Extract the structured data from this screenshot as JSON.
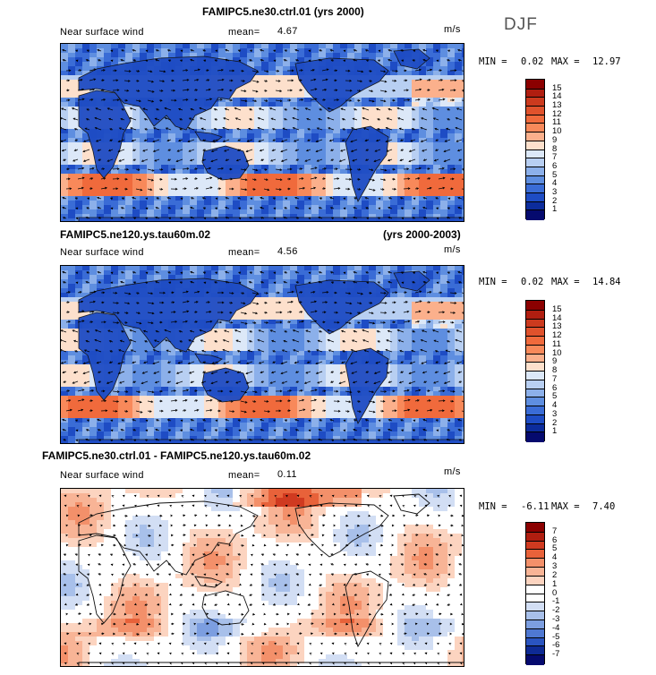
{
  "season": "DJF",
  "panels": [
    {
      "title": "FAMIPC5.ne30.ctrl.01 (yrs 2000)",
      "title_right": "",
      "variable": "Near surface wind",
      "mean_label": "mean=",
      "mean_value": "4.67",
      "units": "m/s",
      "min_label": "MIN =",
      "min_value": "0.02",
      "max_label": "MAX =",
      "max_value": "12.97",
      "colorbar_labels": [
        "15",
        "14",
        "13",
        "12",
        "11",
        "10",
        "9",
        "8",
        "7",
        "6",
        "5",
        "4",
        "3",
        "2",
        "1"
      ]
    },
    {
      "title": "FAMIPC5.ne120.ys.tau60m.02",
      "title_right": "(yrs 2000-2003)",
      "variable": "Near surface wind",
      "mean_label": "mean=",
      "mean_value": "4.56",
      "units": "m/s",
      "min_label": "MIN =",
      "min_value": "0.02",
      "max_label": "MAX =",
      "max_value": "14.84",
      "colorbar_labels": [
        "15",
        "14",
        "13",
        "12",
        "11",
        "10",
        "9",
        "8",
        "7",
        "6",
        "5",
        "4",
        "3",
        "2",
        "1"
      ]
    },
    {
      "title": "FAMIPC5.ne30.ctrl.01 - FAMIPC5.ne120.ys.tau60m.02",
      "title_right": "",
      "variable": "Near surface wind",
      "mean_label": "mean=",
      "mean_value": "0.11",
      "units": "m/s",
      "min_label": "MIN =",
      "min_value": "-6.11",
      "max_label": "MAX =",
      "max_value": "7.40",
      "colorbar_labels": [
        "7",
        "6",
        "5",
        "4",
        "3",
        "2",
        "1",
        "0",
        "-1",
        "-2",
        "-3",
        "-4",
        "-5",
        "-6",
        "-7"
      ]
    }
  ],
  "colors": {
    "abs_scale": [
      "#8b0000",
      "#b01e10",
      "#cc3a1e",
      "#e0522c",
      "#f06a3c",
      "#f8895a",
      "#fbb08c",
      "#fde0cc",
      "#dce8f8",
      "#b8cff2",
      "#8cb0ea",
      "#5e8ee0",
      "#3a6cd6",
      "#1e4cc4",
      "#0c2c9c",
      "#050a6e"
    ],
    "diff_scale": [
      "#8b0000",
      "#b01e10",
      "#d03a20",
      "#e8623a",
      "#f3906a",
      "#f8b496",
      "#fcd4c0",
      "#ffffff",
      "#ffffff",
      "#d2def4",
      "#a8c0ea",
      "#7c9ee0",
      "#4f78d2",
      "#2a54c0",
      "#0e2a94",
      "#050a6e"
    ]
  }
}
